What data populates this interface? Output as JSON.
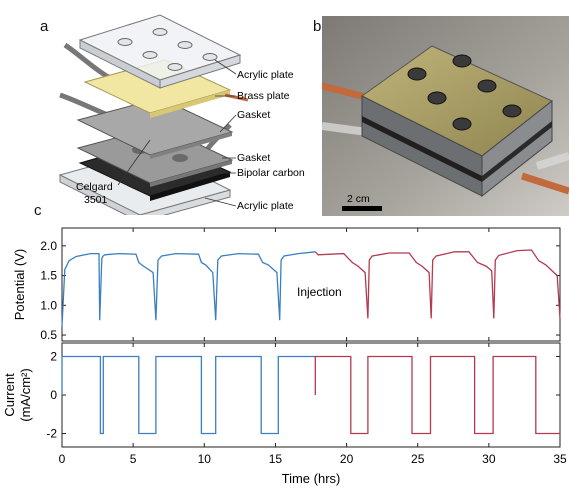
{
  "panels": {
    "a": "a",
    "b": "b",
    "c": "c"
  },
  "diagram_labels": {
    "acrylic_top": "Acrylic plate",
    "brass": "Brass plate",
    "gasket_top": "Gasket",
    "gasket_bottom": "Gasket",
    "bipolar": "Bipolar carbon",
    "acrylic_bottom": "Acrylic plate",
    "celgard_line1": "Celgard",
    "celgard_line2": "3501"
  },
  "photo": {
    "scale_bar_label": "2 cm"
  },
  "colors": {
    "blue": "#3a7fc1",
    "red": "#b5394f",
    "brass": "#f2e7a2",
    "copper": "#c26a3c"
  },
  "chart_data": [
    {
      "type": "line",
      "ylabel": "Potential (V)",
      "xlim": [
        0,
        35
      ],
      "ylim": [
        0.4,
        2.3
      ],
      "yticks": [
        0.5,
        1.0,
        1.5,
        2.0
      ],
      "annotation": "Injection",
      "series": [
        {
          "color": "#3a7fc1",
          "x": [
            0,
            0.2,
            0.5,
            1.0,
            2.0,
            2.6,
            2.65,
            2.8,
            2.85,
            3.0,
            4.0,
            5.2,
            5.4,
            5.6,
            6.4,
            6.6,
            6.75,
            7.0,
            8.0,
            9.6,
            9.8,
            10.1,
            10.6,
            10.8,
            10.95,
            11.2,
            12.4,
            13.8,
            14.1,
            14.5,
            15.1,
            15.3,
            15.4,
            15.6,
            16.6,
            17.8
          ],
          "y": [
            0.65,
            1.6,
            1.75,
            1.82,
            1.87,
            1.87,
            0.75,
            1.78,
            1.82,
            1.85,
            1.87,
            1.86,
            1.72,
            1.68,
            1.55,
            0.75,
            1.76,
            1.83,
            1.87,
            1.86,
            1.72,
            1.68,
            1.55,
            0.75,
            1.76,
            1.83,
            1.87,
            1.86,
            1.72,
            1.68,
            1.55,
            0.75,
            1.76,
            1.83,
            1.87,
            1.9
          ]
        },
        {
          "color": "#b5394f",
          "x": [
            17.8,
            18.0,
            19.8,
            20.4,
            20.8,
            21.3,
            21.5,
            21.6,
            21.8,
            23.0,
            24.4,
            24.9,
            25.3,
            25.8,
            25.95,
            26.05,
            26.3,
            27.6,
            28.6,
            29.2,
            29.8,
            30.2,
            30.35,
            30.45,
            30.7,
            32.0,
            33.0,
            33.5,
            34.0,
            34.8,
            35.0
          ],
          "y": [
            1.9,
            1.85,
            1.87,
            1.72,
            1.66,
            1.55,
            0.78,
            1.76,
            1.83,
            1.88,
            1.88,
            1.72,
            1.66,
            1.55,
            0.78,
            1.76,
            1.83,
            1.9,
            1.9,
            1.72,
            1.66,
            1.58,
            0.78,
            1.76,
            1.84,
            1.92,
            1.93,
            1.75,
            1.68,
            1.5,
            0.78
          ]
        }
      ]
    },
    {
      "type": "line",
      "xlabel": "Time (hrs)",
      "ylabel_line1": "Current",
      "ylabel_line2": "(mA/cm²)",
      "xlim": [
        0,
        35
      ],
      "ylim": [
        -2.7,
        2.7
      ],
      "yticks": [
        -2,
        0,
        2
      ],
      "xticks": [
        0,
        5,
        10,
        15,
        20,
        25,
        30,
        35
      ],
      "series": [
        {
          "color": "#3a7fc1",
          "x": [
            0,
            0,
            2.7,
            2.7,
            2.9,
            2.9,
            5.4,
            5.4,
            6.6,
            6.6,
            9.8,
            9.8,
            10.8,
            10.8,
            14.0,
            14.0,
            15.2,
            15.2,
            17.8
          ],
          "y": [
            0,
            2,
            2,
            -2,
            -2,
            2,
            2,
            -2,
            -2,
            2,
            2,
            -2,
            -2,
            2,
            2,
            -2,
            -2,
            2,
            2
          ]
        },
        {
          "color": "#b5394f",
          "x": [
            17.8,
            17.8,
            20.3,
            20.3,
            21.5,
            21.5,
            24.6,
            24.6,
            25.9,
            25.9,
            29.0,
            29.0,
            30.3,
            30.3,
            33.3,
            33.3,
            35.0
          ],
          "y": [
            0,
            2,
            2,
            -2,
            -2,
            2,
            2,
            -2,
            -2,
            2,
            2,
            -2,
            -2,
            2,
            2,
            -2,
            -2
          ]
        }
      ]
    }
  ]
}
